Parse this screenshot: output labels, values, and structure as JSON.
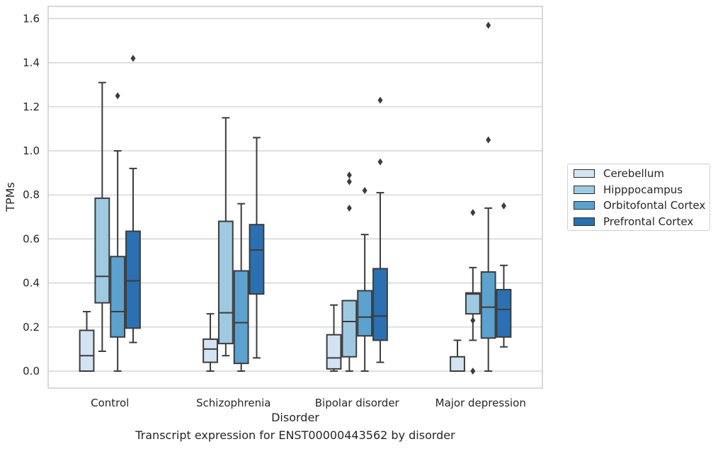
{
  "chart_data": {
    "type": "box",
    "title": "",
    "caption": "Transcript expression for ENST00000443562 by disorder",
    "xlabel": "Disorder",
    "ylabel": "TPMs",
    "ylim": [
      -0.075,
      1.65
    ],
    "yticks": [
      0.0,
      0.2,
      0.4,
      0.6,
      0.8,
      1.0,
      1.2,
      1.4,
      1.6
    ],
    "ytick_labels": [
      "0.0",
      "0.2",
      "0.4",
      "0.6",
      "0.8",
      "1.0",
      "1.2",
      "1.4",
      "1.6"
    ],
    "grid": "horizontal",
    "legend_position": "right",
    "categories": [
      "Control",
      "Schizophrenia",
      "Bipolar disorder",
      "Major depression"
    ],
    "series": [
      {
        "name": "Cerebellum",
        "color": "#d4e3f2",
        "boxes": [
          {
            "whisker_low": 0.0,
            "q1": 0.0,
            "median": 0.07,
            "q3": 0.185,
            "whisker_high": 0.27,
            "outliers": []
          },
          {
            "whisker_low": 0.0,
            "q1": 0.04,
            "median": 0.1,
            "q3": 0.145,
            "whisker_high": 0.26,
            "outliers": []
          },
          {
            "whisker_low": 0.0,
            "q1": 0.01,
            "median": 0.06,
            "q3": 0.165,
            "whisker_high": 0.3,
            "outliers": []
          },
          {
            "whisker_low": 0.0,
            "q1": 0.0,
            "median": 0.0,
            "q3": 0.065,
            "whisker_high": 0.14,
            "outliers": []
          }
        ]
      },
      {
        "name": "Hipppocampus",
        "color": "#9ec9e1",
        "boxes": [
          {
            "whisker_low": 0.09,
            "q1": 0.31,
            "median": 0.43,
            "q3": 0.785,
            "whisker_high": 1.31,
            "outliers": []
          },
          {
            "whisker_low": 0.07,
            "q1": 0.125,
            "median": 0.265,
            "q3": 0.68,
            "whisker_high": 1.15,
            "outliers": []
          },
          {
            "whisker_low": 0.0,
            "q1": 0.065,
            "median": 0.225,
            "q3": 0.32,
            "whisker_high": 0.32,
            "outliers": [
              0.74,
              0.86,
              0.89
            ]
          },
          {
            "whisker_low": 0.14,
            "q1": 0.26,
            "median": 0.35,
            "q3": 0.355,
            "whisker_high": 0.47,
            "outliers": [
              0.0,
              0.23,
              0.72
            ]
          }
        ]
      },
      {
        "name": "Orbitofontal Cortex",
        "color": "#5ba2ce",
        "boxes": [
          {
            "whisker_low": 0.0,
            "q1": 0.155,
            "median": 0.27,
            "q3": 0.52,
            "whisker_high": 1.0,
            "outliers": [
              1.25
            ]
          },
          {
            "whisker_low": 0.0,
            "q1": 0.035,
            "median": 0.22,
            "q3": 0.455,
            "whisker_high": 0.76,
            "outliers": []
          },
          {
            "whisker_low": 0.0,
            "q1": 0.16,
            "median": 0.245,
            "q3": 0.365,
            "whisker_high": 0.62,
            "outliers": [
              0.82
            ]
          },
          {
            "whisker_low": 0.0,
            "q1": 0.15,
            "median": 0.29,
            "q3": 0.45,
            "whisker_high": 0.74,
            "outliers": [
              1.05,
              1.57
            ]
          }
        ]
      },
      {
        "name": "Prefrontal Cortex",
        "color": "#2b70b0",
        "boxes": [
          {
            "whisker_low": 0.13,
            "q1": 0.195,
            "median": 0.41,
            "q3": 0.635,
            "whisker_high": 0.92,
            "outliers": [
              1.42
            ]
          },
          {
            "whisker_low": 0.06,
            "q1": 0.35,
            "median": 0.55,
            "q3": 0.665,
            "whisker_high": 1.06,
            "outliers": []
          },
          {
            "whisker_low": 0.04,
            "q1": 0.14,
            "median": 0.25,
            "q3": 0.465,
            "whisker_high": 0.81,
            "outliers": [
              0.95,
              1.23
            ]
          },
          {
            "whisker_low": 0.11,
            "q1": 0.155,
            "median": 0.28,
            "q3": 0.37,
            "whisker_high": 0.48,
            "outliers": [
              0.75
            ]
          }
        ]
      }
    ]
  }
}
